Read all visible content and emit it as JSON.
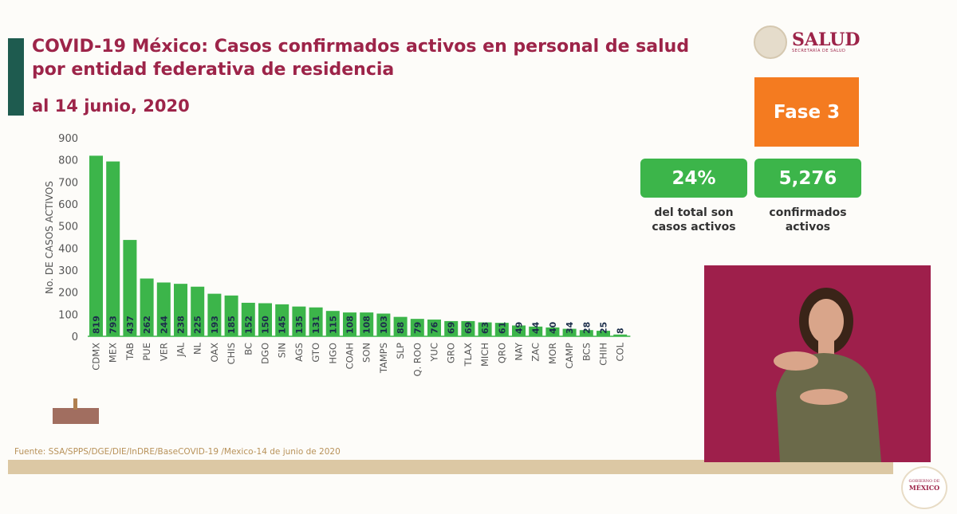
{
  "header": {
    "title": "COVID-19 México: Casos confirmados activos en personal de salud por entidad federativa de residencia",
    "subtitle": "al 14 junio, 2020"
  },
  "logo": {
    "name": "SALUD",
    "sub": "SECRETARÍA DE SALUD"
  },
  "phase": "Fase 3",
  "kpis": [
    {
      "value": "24%",
      "label": "del total son casos activos"
    },
    {
      "value": "5,276",
      "label": "confirmados activos"
    }
  ],
  "source": "Fuente: SSA/SPPS/DGE/DIE/InDRE/BaseCOVID-19 /Mexico-14 de junio de 2020",
  "footer_logo": {
    "line1": "GOBIERNO DE",
    "line2": "MÉXICO"
  },
  "colors": {
    "title": "#9d2449",
    "bar": "#3cb54a",
    "phase": "#f47b20",
    "accent": "#1e5b4f"
  },
  "chart_data": {
    "type": "bar",
    "title": "",
    "xlabel": "",
    "ylabel": "No. DE CASOS ACTIVOS",
    "ylim": [
      0,
      900
    ],
    "yticks": [
      0,
      100,
      200,
      300,
      400,
      500,
      600,
      700,
      800,
      900
    ],
    "grid": false,
    "categories": [
      "CDMX",
      "MEX",
      "TAB",
      "PUE",
      "VER",
      "JAL",
      "NL",
      "OAX",
      "CHIS",
      "BC",
      "DGO",
      "SIN",
      "AGS",
      "GTO",
      "HGO",
      "COAH",
      "SON",
      "TAMPS",
      "SLP",
      "Q. ROO",
      "YUC",
      "GRO",
      "TLAX",
      "MICH",
      "QRO",
      "NAY",
      "ZAC",
      "MOR",
      "CAMP",
      "BCS",
      "CHIH",
      "COL"
    ],
    "values": [
      819,
      793,
      437,
      262,
      244,
      238,
      225,
      193,
      185,
      152,
      150,
      145,
      135,
      131,
      115,
      108,
      108,
      103,
      88,
      79,
      76,
      69,
      69,
      63,
      61,
      49,
      44,
      40,
      34,
      28,
      25,
      8
    ]
  }
}
